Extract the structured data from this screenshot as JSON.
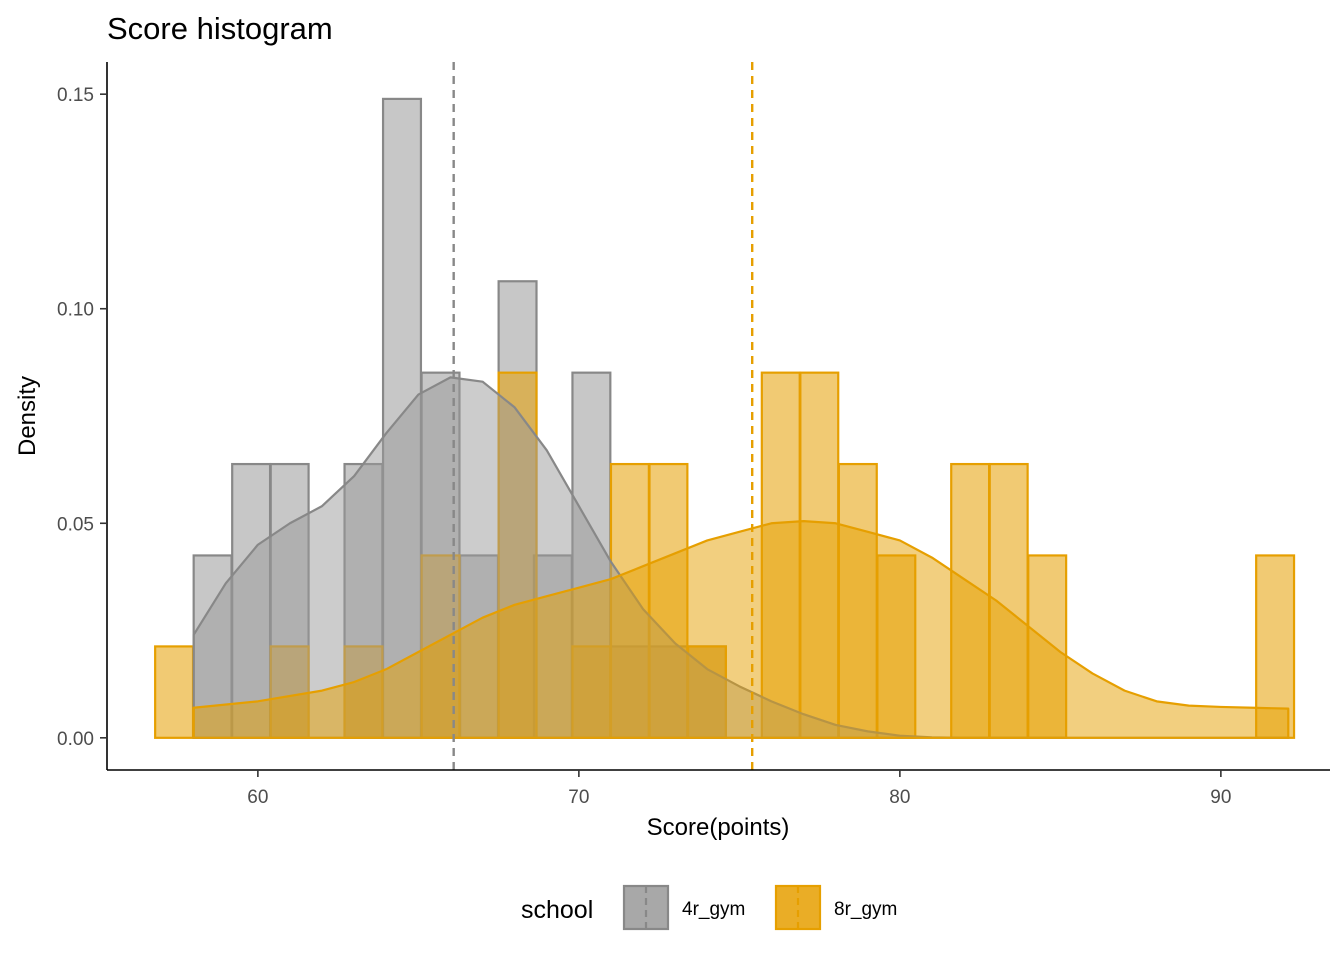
{
  "chart_data": {
    "type": "histogram",
    "title": "Score histogram",
    "xlabel": "Score(points)",
    "ylabel": "Density",
    "xlim": [
      55.3,
      93.4
    ],
    "ylim": [
      -0.0075,
      0.1575
    ],
    "x_ticks": [
      60,
      70,
      80,
      90
    ],
    "x_tick_labels": [
      "60",
      "70",
      "80",
      "90"
    ],
    "y_ticks": [
      0,
      0.05,
      0.1,
      0.15
    ],
    "y_tick_labels": [
      "0.00",
      "0.05",
      "0.10",
      "0.15"
    ],
    "bin_width": 1.18,
    "grid": false,
    "legend": {
      "title": "school",
      "position": "bottom"
    },
    "series": [
      {
        "name": "4r_gym",
        "fill": "#999999",
        "line": "#888888",
        "mean": 66.1,
        "bins": [
          [
            58.0,
            0.0425
          ],
          [
            59.2,
            0.0638
          ],
          [
            60.4,
            0.0638
          ],
          [
            61.6,
            0
          ],
          [
            62.7,
            0.0638
          ],
          [
            63.9,
            0.1489
          ],
          [
            65.1,
            0.0851
          ],
          [
            66.3,
            0.0425
          ],
          [
            67.5,
            0.1064
          ],
          [
            68.6,
            0.0425
          ],
          [
            69.8,
            0.0851
          ],
          [
            71.0,
            0.0213
          ],
          [
            72.2,
            0.0213
          ],
          [
            73.4,
            0.0213
          ]
        ],
        "density": [
          [
            58.0,
            0.024
          ],
          [
            59.0,
            0.036
          ],
          [
            60.0,
            0.045
          ],
          [
            61.0,
            0.05
          ],
          [
            62.0,
            0.054
          ],
          [
            63.0,
            0.061
          ],
          [
            64.0,
            0.071
          ],
          [
            65.0,
            0.08
          ],
          [
            66.0,
            0.084
          ],
          [
            67.0,
            0.083
          ],
          [
            68.0,
            0.077
          ],
          [
            69.0,
            0.067
          ],
          [
            70.0,
            0.054
          ],
          [
            71.0,
            0.041
          ],
          [
            72.0,
            0.03
          ],
          [
            73.0,
            0.022
          ],
          [
            74.0,
            0.016
          ],
          [
            75.0,
            0.012
          ],
          [
            76.0,
            0.0085
          ],
          [
            77.0,
            0.0055
          ],
          [
            78.0,
            0.003
          ],
          [
            79.0,
            0.0015
          ],
          [
            80.0,
            0.0005
          ],
          [
            81.0,
            0.0001
          ],
          [
            82.0,
            0
          ],
          [
            92.1,
            0
          ]
        ]
      },
      {
        "name": "8r_gym",
        "fill": "#E69F00",
        "line": "#E69F00",
        "mean": 75.4,
        "bins": [
          [
            56.8,
            0.0213
          ],
          [
            58.0,
            0
          ],
          [
            59.2,
            0
          ],
          [
            60.4,
            0.0213
          ],
          [
            61.6,
            0
          ],
          [
            62.7,
            0.0213
          ],
          [
            63.9,
            0
          ],
          [
            65.1,
            0.0425
          ],
          [
            66.3,
            0
          ],
          [
            67.5,
            0.0851
          ],
          [
            68.6,
            0
          ],
          [
            69.8,
            0.0213
          ],
          [
            71.0,
            0.0638
          ],
          [
            72.2,
            0.0638
          ],
          [
            73.4,
            0.0213
          ],
          [
            74.5,
            0
          ],
          [
            75.7,
            0.0851
          ],
          [
            76.9,
            0.0851
          ],
          [
            78.1,
            0.0638
          ],
          [
            79.3,
            0.0425
          ],
          [
            80.4,
            0
          ],
          [
            81.6,
            0.0638
          ],
          [
            82.8,
            0.0638
          ],
          [
            84.0,
            0.0425
          ],
          [
            85.2,
            0
          ],
          [
            86.4,
            0
          ],
          [
            87.5,
            0
          ],
          [
            88.7,
            0
          ],
          [
            89.9,
            0
          ],
          [
            91.1,
            0.0425
          ]
        ],
        "density": [
          [
            58.0,
            0.007
          ],
          [
            60.0,
            0.0085
          ],
          [
            62.0,
            0.011
          ],
          [
            63.0,
            0.013
          ],
          [
            64.0,
            0.016
          ],
          [
            65.0,
            0.02
          ],
          [
            66.0,
            0.024
          ],
          [
            67.0,
            0.028
          ],
          [
            68.0,
            0.031
          ],
          [
            69.0,
            0.033
          ],
          [
            70.0,
            0.035
          ],
          [
            71.0,
            0.037
          ],
          [
            72.0,
            0.04
          ],
          [
            73.0,
            0.043
          ],
          [
            74.0,
            0.046
          ],
          [
            75.0,
            0.048
          ],
          [
            76.0,
            0.05
          ],
          [
            77.0,
            0.0505
          ],
          [
            78.0,
            0.05
          ],
          [
            79.0,
            0.048
          ],
          [
            80.0,
            0.046
          ],
          [
            81.0,
            0.042
          ],
          [
            82.0,
            0.037
          ],
          [
            83.0,
            0.032
          ],
          [
            84.0,
            0.026
          ],
          [
            85.0,
            0.02
          ],
          [
            86.0,
            0.015
          ],
          [
            87.0,
            0.011
          ],
          [
            88.0,
            0.0085
          ],
          [
            89.0,
            0.0075
          ],
          [
            90.0,
            0.0072
          ],
          [
            91.0,
            0.007
          ],
          [
            92.1,
            0.0068
          ]
        ]
      }
    ]
  }
}
